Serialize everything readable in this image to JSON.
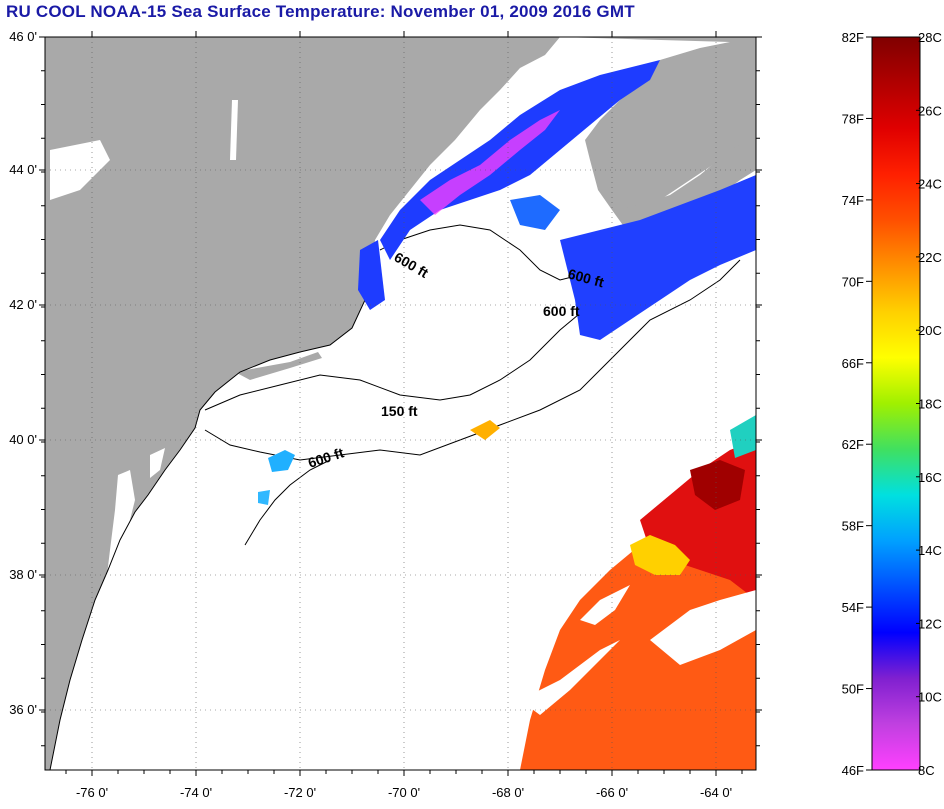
{
  "title": "RU COOL  NOAA-15  Sea Surface Temperature:  November 01, 2009 2016 GMT",
  "map": {
    "lat_labels": [
      "46 0'",
      "44 0'",
      "42 0'",
      "40 0'",
      "38 0'",
      "36 0'"
    ],
    "lon_labels": [
      "-76 0'",
      "-74 0'",
      "-72 0'",
      "-70 0'",
      "-68 0'",
      "-66 0'",
      "-64 0'"
    ],
    "contour_labels": [
      "600 ft",
      "600 ft",
      "600 ft",
      "150 ft",
      "600 ft"
    ],
    "colors": {
      "land": "#a9a9a9",
      "cloud": "#ffffff",
      "coast": "#000000",
      "grid": "#555555"
    }
  },
  "colorbar": {
    "fahrenheit_labels": [
      "82F",
      "78F",
      "74F",
      "70F",
      "66F",
      "62F",
      "58F",
      "54F",
      "50F",
      "46F"
    ],
    "celsius_labels": [
      "28C",
      "26C",
      "24C",
      "22C",
      "20C",
      "18C",
      "16C",
      "14C",
      "12C",
      "10C",
      "8C"
    ],
    "gradient": [
      "#ff40ff",
      "#c040e0",
      "#8020d0",
      "#0000ff",
      "#0050ff",
      "#00a0ff",
      "#00e0e0",
      "#40e060",
      "#a0f000",
      "#ffff00",
      "#ffd000",
      "#ff9000",
      "#ff5000",
      "#ff2000",
      "#e00000",
      "#b00000",
      "#800000"
    ]
  }
}
